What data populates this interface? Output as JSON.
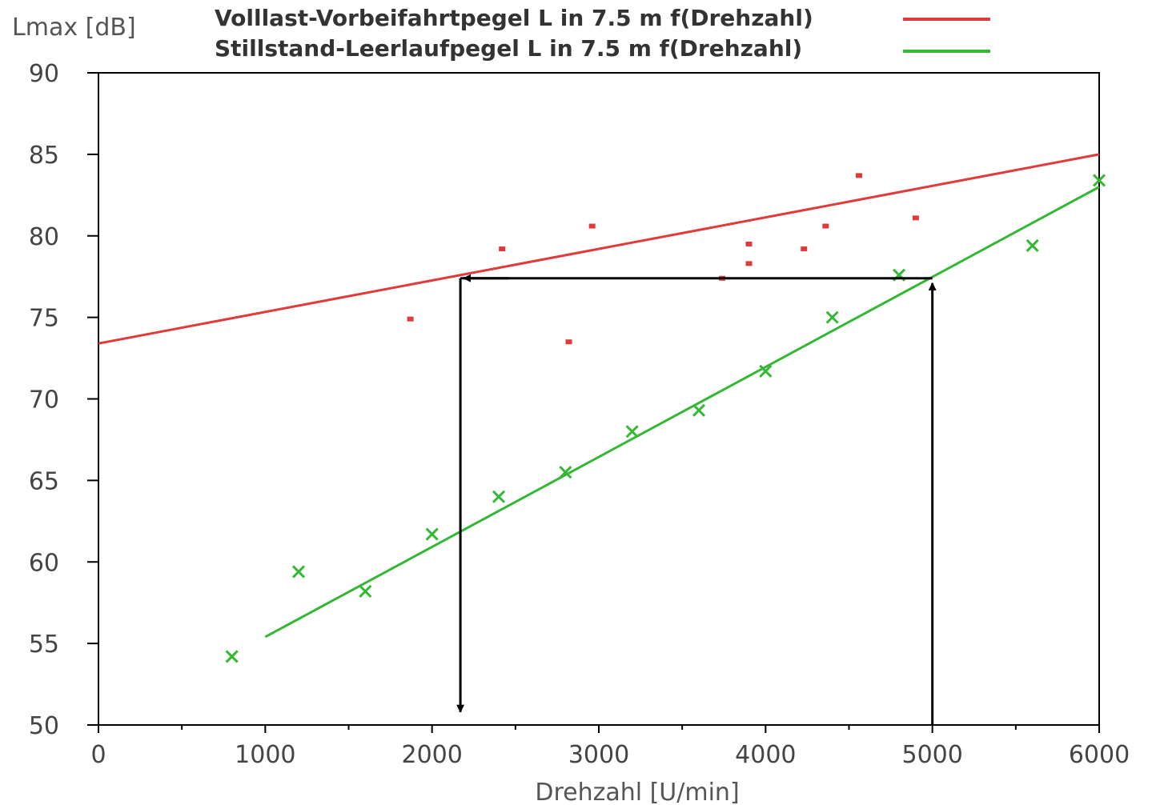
{
  "chart_data": {
    "type": "scatter",
    "ylabel": "Lmax [dB]",
    "xlabel": "Drehzahl [U/min]",
    "xlim": [
      0,
      6000
    ],
    "ylim": [
      50,
      90
    ],
    "x_ticks": [
      0,
      1000,
      2000,
      3000,
      4000,
      5000,
      6000
    ],
    "y_ticks": [
      50,
      55,
      60,
      65,
      70,
      75,
      80,
      85,
      90
    ],
    "grid": false,
    "legend_position": "top",
    "series": [
      {
        "name": "Volllast-Vorbeifahrtpegel L in 7.5 m f(Drehzahl)",
        "color": "#e03a3a",
        "marker": "square",
        "fit_line": [
          [
            0,
            73.4
          ],
          [
            6000,
            85.0
          ]
        ],
        "points": [
          [
            1870,
            74.9
          ],
          [
            2420,
            79.2
          ],
          [
            2820,
            73.5
          ],
          [
            2960,
            80.6
          ],
          [
            3740,
            77.4
          ],
          [
            3900,
            79.5
          ],
          [
            3900,
            78.3
          ],
          [
            4230,
            79.2
          ],
          [
            4360,
            80.6
          ],
          [
            4560,
            83.7
          ],
          [
            4900,
            81.1
          ]
        ]
      },
      {
        "name": "Stillstand-Leerlaufpegel L in 7.5 m f(Drehzahl)",
        "color": "#33b833",
        "marker": "x",
        "fit_line": [
          [
            1000,
            55.4
          ],
          [
            6000,
            83.0
          ]
        ],
        "points": [
          [
            800,
            54.2
          ],
          [
            1200,
            59.4
          ],
          [
            1600,
            58.2
          ],
          [
            2000,
            61.7
          ],
          [
            2400,
            64.0
          ],
          [
            2800,
            65.5
          ],
          [
            3200,
            68.0
          ],
          [
            3600,
            69.3
          ],
          [
            4000,
            71.7
          ],
          [
            4400,
            75.0
          ],
          [
            4800,
            77.6
          ],
          [
            5600,
            79.4
          ],
          [
            6000,
            83.4
          ]
        ]
      }
    ],
    "annotations": {
      "arrow_path": [
        [
          5000,
          50
        ],
        [
          5000,
          77.4
        ],
        [
          2170,
          77.4
        ],
        [
          2170,
          50.8
        ]
      ],
      "color": "#000000"
    }
  }
}
